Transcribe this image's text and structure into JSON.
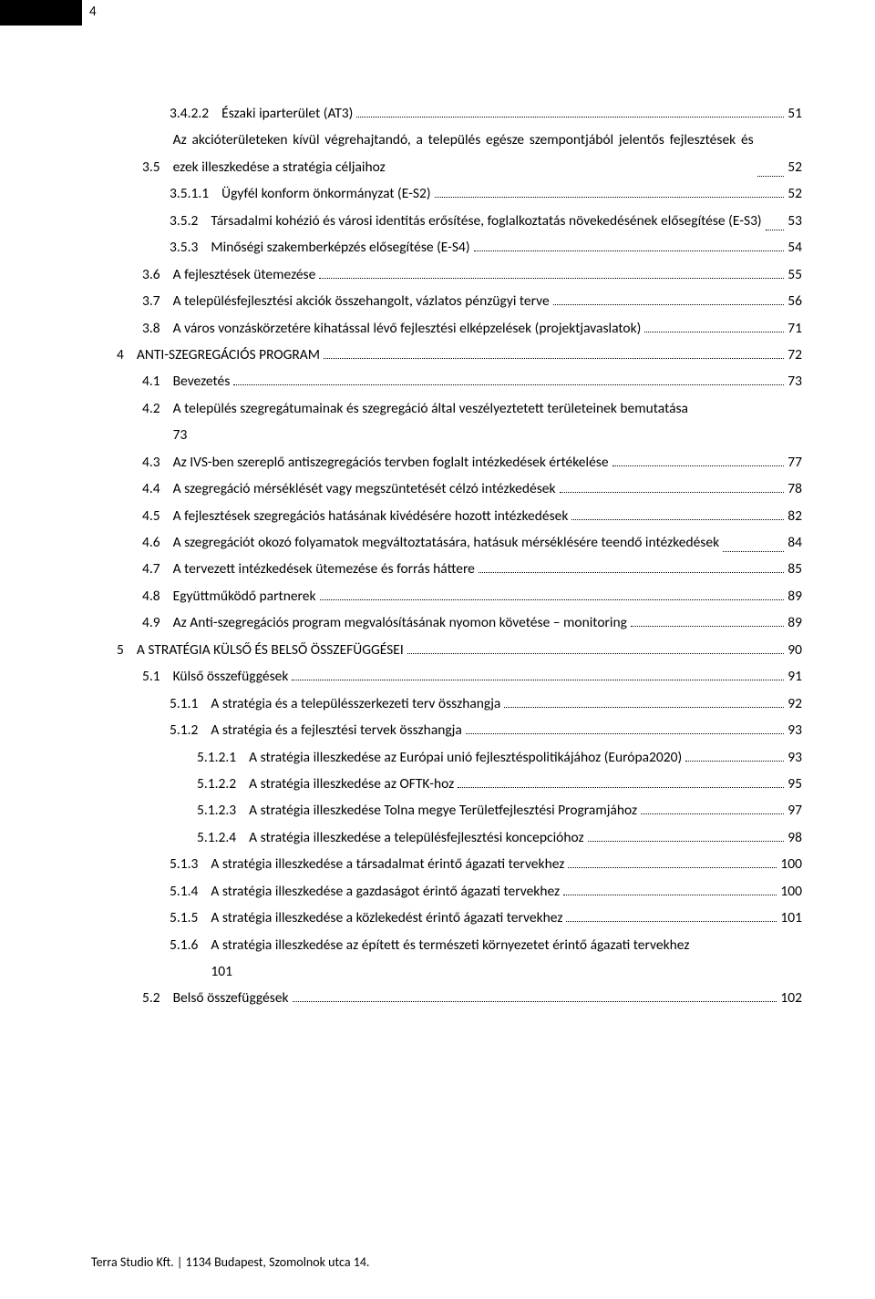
{
  "page_number": "4",
  "footer": "Terra Studio Kft. | 1134 Budapest, Szomolnok utca 14.",
  "toc": [
    {
      "lvl": "c",
      "num": "3.4.2.2",
      "title": "Északi iparterület (AT3)",
      "page": "51"
    },
    {
      "lvl": "b",
      "num": "3.5",
      "title": "Az akcióterületeken kívül végrehajtandó, a település egésze szempontjából jelentős fejlesztések és ezek illeszkedése a stratégia céljaihoz",
      "page": "52",
      "multi": true
    },
    {
      "lvl": "c",
      "num": "3.5.1.1",
      "title": "Ügyfél konform önkormányzat (E-S2)",
      "page": "52"
    },
    {
      "lvl": "c",
      "num": "3.5.2",
      "title": "Társadalmi kohézió és városi identitás erősítése, foglalkoztatás növekedésének elősegítése (E-S3)",
      "page": "53",
      "multi": true
    },
    {
      "lvl": "c",
      "num": "3.5.3",
      "title": "Minőségi szakemberképzés elősegítése (E-S4)",
      "page": "54"
    },
    {
      "lvl": "b",
      "num": "3.6",
      "title": "A fejlesztések ütemezése",
      "page": "55"
    },
    {
      "lvl": "b",
      "num": "3.7",
      "title": "A településfejlesztési akciók összehangolt, vázlatos pénzügyi terve",
      "page": "56"
    },
    {
      "lvl": "b",
      "num": "3.8",
      "title": "A város vonzáskörzetére kihatással lévő fejlesztési elképzelések (projektjavaslatok)",
      "page": "71"
    },
    {
      "lvl": "a",
      "num": "4",
      "title": "ANTI-SZEGREGÁCIÓS PROGRAM",
      "page": "72"
    },
    {
      "lvl": "b",
      "num": "4.1",
      "title": "Bevezetés",
      "page": "73"
    },
    {
      "lvl": "b",
      "num": "4.2",
      "title": "A település szegregátumainak és szegregáció által veszélyeztetett területeinek bemutatása",
      "page": "73",
      "multi": true,
      "page_below": true
    },
    {
      "lvl": "b",
      "num": "4.3",
      "title": "Az IVS-ben szereplő antiszegregációs tervben foglalt intézkedések értékelése",
      "page": "77"
    },
    {
      "lvl": "b",
      "num": "4.4",
      "title": "A szegregáció mérséklését vagy megszüntetését célzó intézkedések",
      "page": "78"
    },
    {
      "lvl": "b",
      "num": "4.5",
      "title": "A fejlesztések szegregációs hatásának kivédésére hozott intézkedések",
      "page": "82"
    },
    {
      "lvl": "b",
      "num": "4.6",
      "title": "A szegregációt okozó folyamatok megváltoztatására, hatásuk mérséklésére teendő intézkedések",
      "page": "84",
      "multi": true
    },
    {
      "lvl": "b",
      "num": "4.7",
      "title": "A tervezett intézkedések ütemezése és forrás háttere",
      "page": "85"
    },
    {
      "lvl": "b",
      "num": "4.8",
      "title": "Együttműködő partnerek",
      "page": "89"
    },
    {
      "lvl": "b",
      "num": "4.9",
      "title": "Az Anti-szegregációs program megvalósításának nyomon követése – monitoring",
      "page": "89"
    },
    {
      "lvl": "a",
      "num": "5",
      "title": "A STRATÉGIA KÜLSŐ ÉS BELSŐ ÖSSZEFÜGGÉSEI",
      "page": "90"
    },
    {
      "lvl": "b",
      "num": "5.1",
      "title": "Külső összefüggések",
      "page": "91"
    },
    {
      "lvl": "c",
      "num": "5.1.1",
      "title": "A stratégia és a településszerkezeti terv összhangja",
      "page": "92"
    },
    {
      "lvl": "c",
      "num": "5.1.2",
      "title": "A stratégia és a fejlesztési tervek összhangja",
      "page": "93"
    },
    {
      "lvl": "d",
      "num": "5.1.2.1",
      "title": "A stratégia illeszkedése az Európai unió fejlesztéspolitikájához (Európa2020)",
      "page": "93"
    },
    {
      "lvl": "d",
      "num": "5.1.2.2",
      "title": "A stratégia illeszkedése az OFTK-hoz",
      "page": "95"
    },
    {
      "lvl": "d",
      "num": "5.1.2.3",
      "title": "A stratégia illeszkedése Tolna megye Területfejlesztési Programjához",
      "page": "97"
    },
    {
      "lvl": "d",
      "num": "5.1.2.4",
      "title": "A stratégia illeszkedése a településfejlesztési koncepcióhoz",
      "page": "98"
    },
    {
      "lvl": "c",
      "num": "5.1.3",
      "title": "A stratégia illeszkedése a társadalmat érintő ágazati tervekhez",
      "page": "100"
    },
    {
      "lvl": "c",
      "num": "5.1.4",
      "title": "A stratégia illeszkedése a gazdaságot érintő ágazati tervekhez",
      "page": "100"
    },
    {
      "lvl": "c",
      "num": "5.1.5",
      "title": "A stratégia illeszkedése a közlekedést érintő ágazati tervekhez",
      "page": "101"
    },
    {
      "lvl": "c",
      "num": "5.1.6",
      "title": "A stratégia illeszkedése az épített és természeti környezetet érintő ágazati tervekhez",
      "page": "101",
      "multi": true,
      "page_below": true
    },
    {
      "lvl": "b",
      "num": "5.2",
      "title": "Belső összefüggések",
      "page": "102"
    }
  ]
}
